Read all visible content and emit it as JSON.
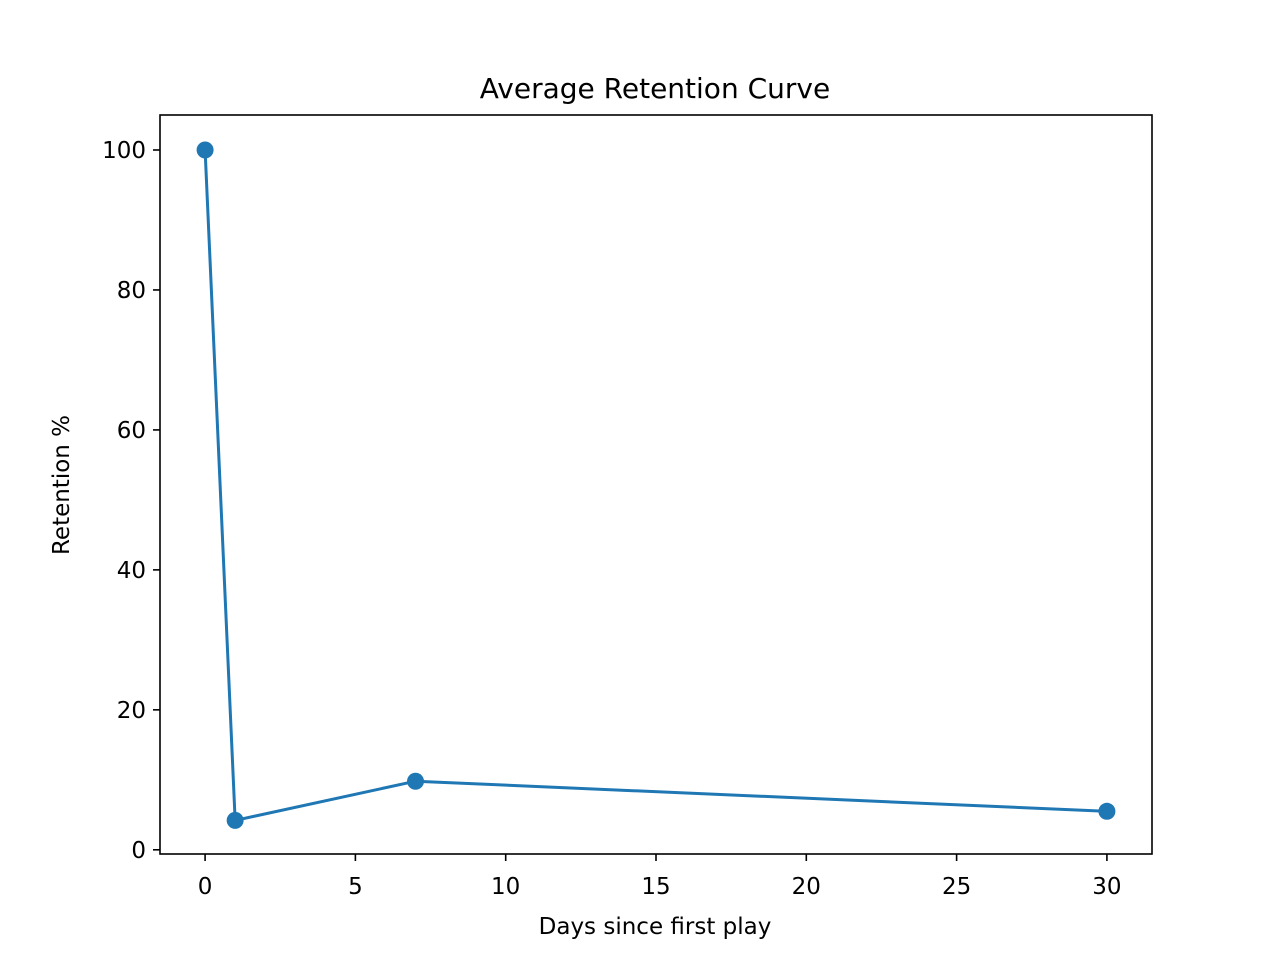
{
  "chart_data": {
    "type": "line",
    "title": "Average Retention Curve",
    "xlabel": "Days since first play",
    "ylabel": "Retention %",
    "xlim": [
      -1.5,
      31.5
    ],
    "ylim": [
      -0.6,
      105
    ],
    "xticks": [
      0,
      5,
      10,
      15,
      20,
      25,
      30
    ],
    "yticks": [
      0,
      20,
      40,
      60,
      80,
      100
    ],
    "grid": false,
    "series": [
      {
        "color": "#1f77b4",
        "marker": "circle",
        "points": [
          {
            "x": 0,
            "y": 100
          },
          {
            "x": 1,
            "y": 4.2
          },
          {
            "x": 7,
            "y": 9.8
          },
          {
            "x": 30,
            "y": 5.5
          }
        ]
      }
    ]
  }
}
